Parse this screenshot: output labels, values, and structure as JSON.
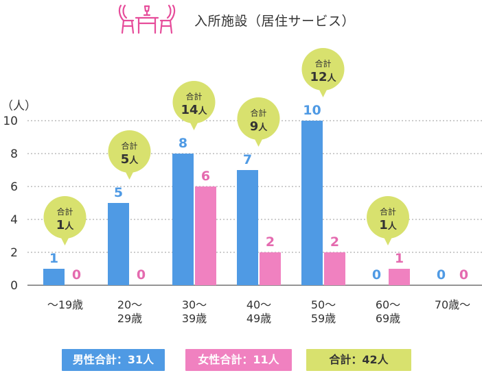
{
  "header": {
    "title": "入所施設（居住サービス）",
    "icon": "dining-table-chairs-icon",
    "icon_color": "#e64c9a"
  },
  "chart_data": {
    "type": "bar",
    "unit_label": "（人）",
    "categories": [
      [
        "〜19歳"
      ],
      [
        "20〜",
        "29歳"
      ],
      [
        "30〜",
        "39歳"
      ],
      [
        "40〜",
        "49歳"
      ],
      [
        "50〜",
        "59歳"
      ],
      [
        "60〜",
        "69歳"
      ],
      [
        "70歳〜"
      ]
    ],
    "ylim": [
      0,
      10
    ],
    "yticks": [
      0,
      2,
      4,
      6,
      8,
      10
    ],
    "grid": true,
    "series": [
      {
        "key": "male",
        "values": [
          1,
          5,
          8,
          7,
          10,
          0,
          0
        ],
        "color": "#4f9ae4",
        "label_color": "#4f9ae4"
      },
      {
        "key": "female",
        "values": [
          0,
          0,
          6,
          2,
          2,
          1,
          0
        ],
        "color": "#f081c0",
        "label_color": "#e46aaf"
      }
    ],
    "totals": {
      "label": "合計",
      "unit": "人",
      "values": [
        1,
        5,
        14,
        9,
        12,
        1,
        0
      ],
      "bubble_color": "#d8e16e"
    }
  },
  "legend": {
    "male": "男性合計：31人",
    "female": "女性合計：11人",
    "total": "合計：42人"
  }
}
